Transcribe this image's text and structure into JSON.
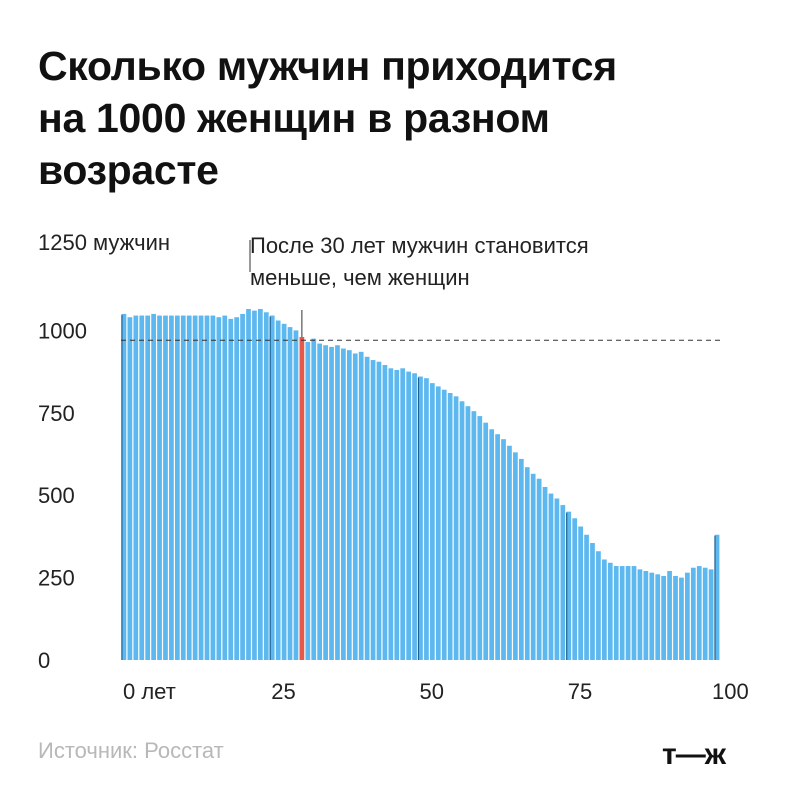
{
  "title_lines": [
    "Сколько мужчин приходится",
    "на 1000 женщин в разном",
    "возрасте"
  ],
  "source": "Источник: Росстат",
  "logo": "т—ж",
  "colors": {
    "bar": "#5db8f0",
    "highlight": "#e8584a",
    "text": "#111111",
    "muted": "#b8b8b8"
  },
  "chart_data": {
    "type": "bar",
    "title": "Сколько мужчин приходится на 1000 женщин в разном возрасте",
    "ylabel": "1250 мужчин",
    "ylim": [
      0,
      1250
    ],
    "yticks": [
      0,
      250,
      500,
      750,
      1000
    ],
    "ytick_labels": [
      "0",
      "250",
      "500",
      "750",
      "1000"
    ],
    "xtick_labels": [
      {
        "age": 0,
        "label": "0 лет"
      },
      {
        "age": 25,
        "label": "25"
      },
      {
        "age": 50,
        "label": "50"
      },
      {
        "age": 75,
        "label": "75"
      },
      {
        "age": 100,
        "label": "100"
      }
    ],
    "reference_line": 970,
    "highlight_age": 30,
    "annotation_lines": [
      "После 30 лет мужчин становится",
      "меньше, чем женщин"
    ],
    "ages": [
      0,
      1,
      2,
      3,
      4,
      5,
      6,
      7,
      8,
      9,
      10,
      11,
      12,
      13,
      14,
      15,
      16,
      17,
      18,
      19,
      20,
      21,
      22,
      23,
      24,
      25,
      26,
      27,
      28,
      29,
      30,
      31,
      32,
      33,
      34,
      35,
      36,
      37,
      38,
      39,
      40,
      41,
      42,
      43,
      44,
      45,
      46,
      47,
      48,
      49,
      50,
      51,
      52,
      53,
      54,
      55,
      56,
      57,
      58,
      59,
      60,
      61,
      62,
      63,
      64,
      65,
      66,
      67,
      68,
      69,
      70,
      71,
      72,
      73,
      74,
      75,
      76,
      77,
      78,
      79,
      80,
      81,
      82,
      83,
      84,
      85,
      86,
      87,
      88,
      89,
      90,
      91,
      92,
      93,
      94,
      95,
      96,
      97,
      98,
      99,
      100
    ],
    "values": [
      1050,
      1040,
      1045,
      1045,
      1045,
      1050,
      1045,
      1045,
      1045,
      1045,
      1045,
      1045,
      1045,
      1045,
      1045,
      1045,
      1040,
      1045,
      1035,
      1040,
      1050,
      1065,
      1060,
      1065,
      1055,
      1045,
      1030,
      1020,
      1010,
      1000,
      980,
      965,
      975,
      960,
      955,
      950,
      955,
      945,
      940,
      930,
      935,
      920,
      910,
      905,
      895,
      885,
      880,
      885,
      875,
      870,
      860,
      855,
      840,
      830,
      820,
      810,
      800,
      785,
      770,
      755,
      740,
      720,
      700,
      685,
      670,
      650,
      630,
      610,
      585,
      565,
      550,
      525,
      505,
      490,
      470,
      450,
      430,
      405,
      380,
      355,
      330,
      305,
      295,
      285,
      285,
      285,
      285,
      275,
      270,
      265,
      260,
      255,
      270,
      255,
      250,
      265,
      280,
      285,
      280,
      275,
      380
    ]
  }
}
